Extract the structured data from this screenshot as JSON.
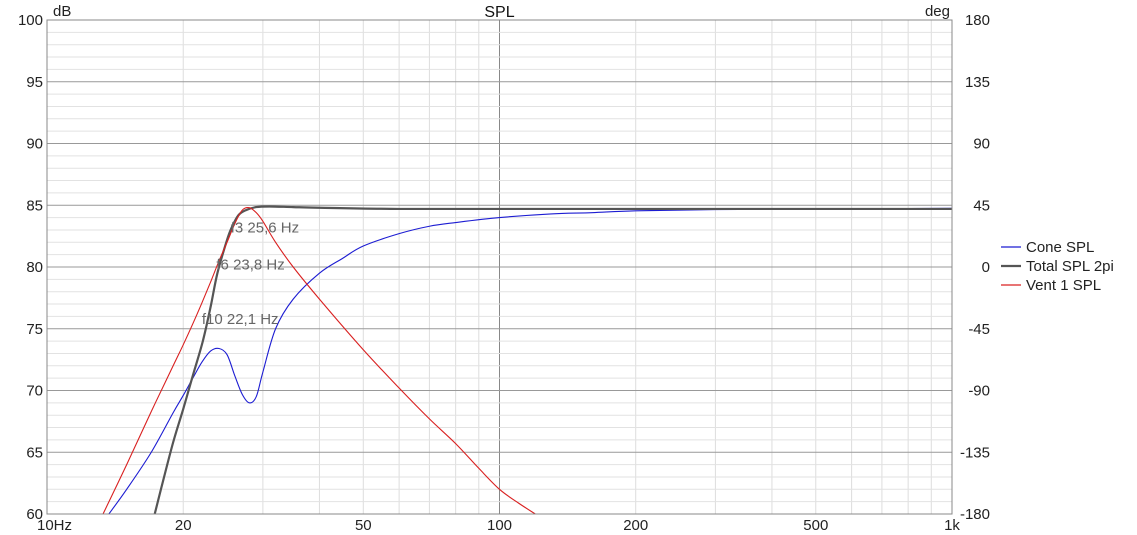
{
  "chart_data": {
    "type": "line",
    "title": "SPL",
    "x_scale": "log",
    "xlim": [
      10,
      1000
    ],
    "ylim": [
      60,
      100
    ],
    "y2lim": [
      -180,
      180
    ],
    "ylabel": "dB",
    "y2label": "deg",
    "grid": true,
    "legend_position": "right",
    "x_ticks": [
      {
        "value": 10,
        "label": "10Hz"
      },
      {
        "value": 20,
        "label": "20"
      },
      {
        "value": 50,
        "label": "50"
      },
      {
        "value": 100,
        "label": "100"
      },
      {
        "value": 200,
        "label": "200"
      },
      {
        "value": 500,
        "label": "500"
      },
      {
        "value": 1000,
        "label": "1k"
      }
    ],
    "y_ticks": [
      {
        "value": 60,
        "label": "60"
      },
      {
        "value": 65,
        "label": "65"
      },
      {
        "value": 70,
        "label": "70"
      },
      {
        "value": 75,
        "label": "75"
      },
      {
        "value": 80,
        "label": "80"
      },
      {
        "value": 85,
        "label": "85"
      },
      {
        "value": 90,
        "label": "90"
      },
      {
        "value": 95,
        "label": "95"
      },
      {
        "value": 100,
        "label": "100"
      }
    ],
    "y2_ticks": [
      {
        "value": -180,
        "label": "-180"
      },
      {
        "value": -135,
        "label": "-135"
      },
      {
        "value": -90,
        "label": "-90"
      },
      {
        "value": -45,
        "label": "-45"
      },
      {
        "value": 0,
        "label": "0"
      },
      {
        "value": 45,
        "label": "45"
      },
      {
        "value": 90,
        "label": "90"
      },
      {
        "value": 135,
        "label": "135"
      },
      {
        "value": 180,
        "label": "180"
      }
    ],
    "series": [
      {
        "name": "Cone SPL",
        "color": "#1c1cd2",
        "x": [
          13.7,
          15,
          17,
          19,
          20,
          21,
          22,
          23,
          24,
          25,
          26,
          27,
          28,
          29,
          30,
          32,
          35,
          40,
          45,
          50,
          60,
          70,
          80,
          100,
          130,
          160,
          200,
          300,
          500,
          1000
        ],
        "y": [
          60,
          62,
          65,
          68.2,
          69.6,
          71,
          72.3,
          73.2,
          73.4,
          72.9,
          71.2,
          69.7,
          69,
          69.5,
          71.5,
          75,
          77.4,
          79.5,
          80.7,
          81.7,
          82.7,
          83.3,
          83.6,
          84,
          84.3,
          84.4,
          84.55,
          84.65,
          84.7,
          84.75
        ]
      },
      {
        "name": "Total SPL 2pi",
        "color": "#555555",
        "x": [
          17.3,
          18,
          19,
          20,
          21,
          22.1,
          23,
          23.8,
          25,
          25.6,
          26.5,
          27.5,
          29,
          31,
          35,
          40,
          60,
          100,
          200,
          500,
          1000
        ],
        "y": [
          60,
          62.5,
          65.8,
          68.5,
          71.2,
          74,
          76.8,
          79.5,
          82.2,
          83.2,
          84.2,
          84.6,
          84.85,
          84.9,
          84.85,
          84.8,
          84.7,
          84.7,
          84.7,
          84.7,
          84.7
        ]
      },
      {
        "name": "Vent 1 SPL",
        "color": "#d92020",
        "x": [
          13.3,
          15,
          17,
          19,
          20,
          21,
          22,
          23,
          24,
          25,
          26,
          27,
          28,
          29,
          30,
          32,
          35,
          40,
          50,
          60,
          70,
          80,
          90,
          100,
          110,
          120
        ],
        "y": [
          60,
          64,
          68.3,
          72,
          73.7,
          75.4,
          77.1,
          78.8,
          80.5,
          82,
          83.5,
          84.6,
          84.8,
          84.4,
          83.7,
          82,
          80,
          77.4,
          73.3,
          70.2,
          67.7,
          65.7,
          63.7,
          62,
          60.9,
          60
        ]
      }
    ],
    "annotations": [
      {
        "text": "f3 25,6 Hz",
        "x": 25.6,
        "y": 83.2
      },
      {
        "text": "f6 23,8 Hz",
        "x": 23.8,
        "y": 80.2
      },
      {
        "text": "f10 22,1 Hz",
        "x": 22.1,
        "y": 75.8
      }
    ]
  }
}
